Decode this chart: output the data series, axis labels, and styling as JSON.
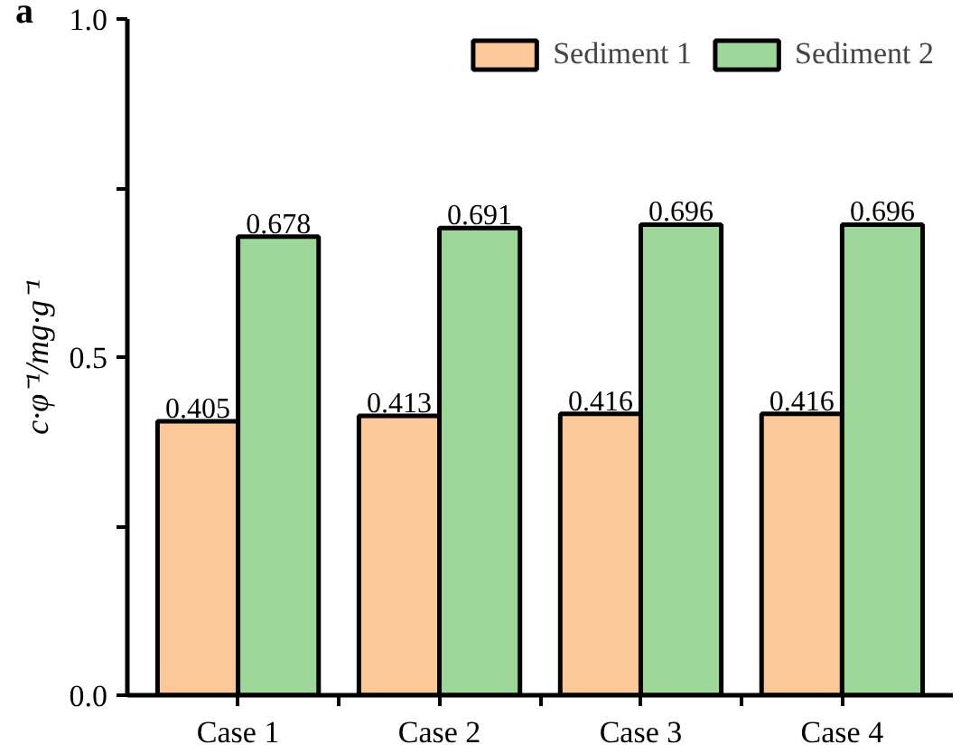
{
  "chart_data": {
    "type": "bar",
    "ylabel": "c·φ⁻¹/mg·g⁻¹",
    "annotations": [
      "a"
    ],
    "categories": [
      "Case 1",
      "Case 2",
      "Case 3",
      "Case 4"
    ],
    "series": [
      {
        "name": "Sediment 1",
        "color": "#fdc897",
        "values": [
          0.405,
          0.413,
          0.416,
          0.416
        ]
      },
      {
        "name": "Sediment 2",
        "color": "#9dd89a",
        "values": [
          0.678,
          0.691,
          0.696,
          0.696
        ]
      }
    ],
    "ylim": [
      0,
      1
    ],
    "yticks": [
      {
        "value": 0,
        "label": "0.0"
      },
      {
        "value": 0.25,
        "label": null
      },
      {
        "value": 0.5,
        "label": "0.5"
      },
      {
        "value": 0.75,
        "label": null
      },
      {
        "value": 1,
        "label": "1.0"
      }
    ],
    "data_labels": true,
    "legend": "top right",
    "grid": false
  }
}
